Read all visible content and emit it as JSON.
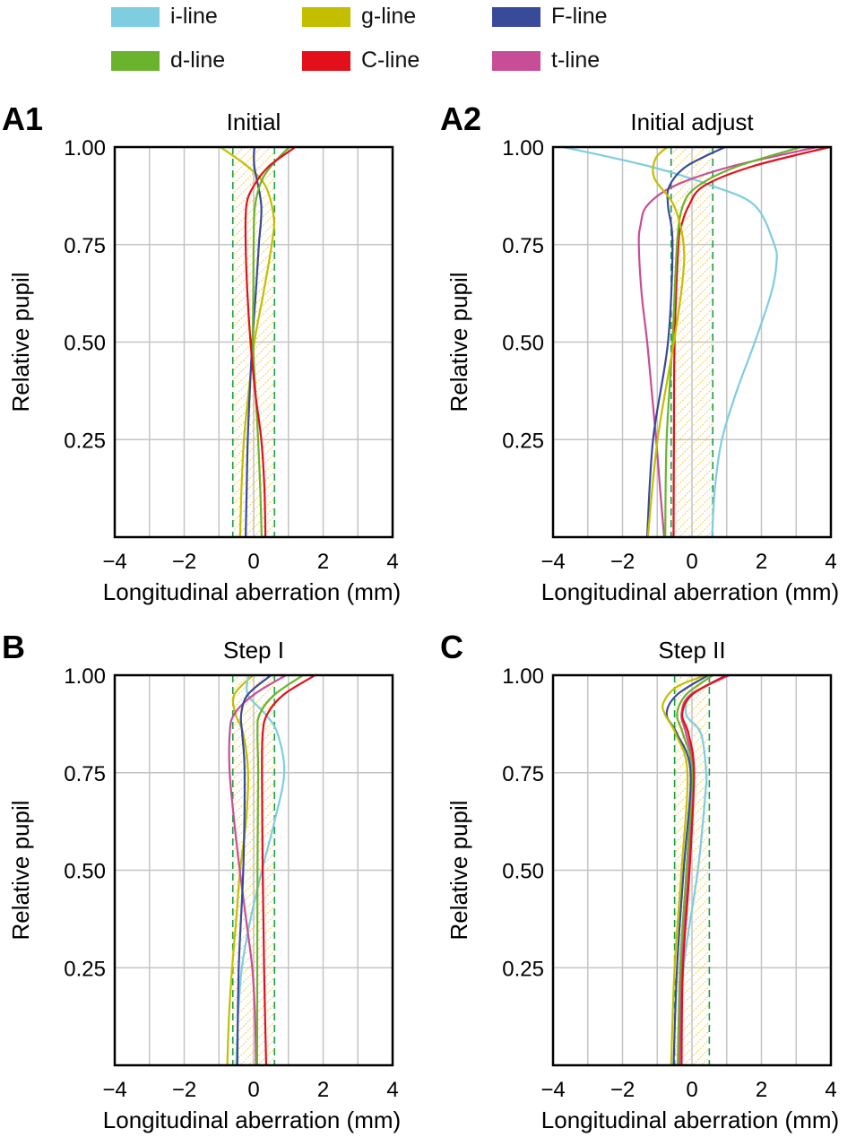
{
  "legend": [
    {
      "name": "i-line",
      "color": "#7ecde0"
    },
    {
      "name": "g-line",
      "color": "#c4be00"
    },
    {
      "name": "F-line",
      "color": "#3a4a9a"
    },
    {
      "name": "d-line",
      "color": "#6ab42d"
    },
    {
      "name": "C-line",
      "color": "#e3101b"
    },
    {
      "name": "t-line",
      "color": "#c84d97"
    }
  ],
  "chart_data": [
    {
      "panel": "A1",
      "title": "Initial",
      "type": "line",
      "xlabel": "Longitudinal aberration (mm)",
      "ylabel": "Relative pupil",
      "xlim": [
        -4,
        4
      ],
      "ylim": [
        0,
        1
      ],
      "xticks": [
        "−4",
        "−2",
        "0",
        "2",
        "4"
      ],
      "yticks": [
        "0.25",
        "0.50",
        "0.75",
        "1.00"
      ],
      "grid": true,
      "depth_of_focus": [
        -0.6,
        0.6
      ],
      "series": [
        {
          "name": "g-line",
          "points": [
            [
              -0.39,
              0
            ],
            [
              -0.35,
              0.125
            ],
            [
              -0.28,
              0.25
            ],
            [
              -0.14,
              0.375
            ],
            [
              0.02,
              0.5
            ],
            [
              0.28,
              0.625
            ],
            [
              0.52,
              0.75
            ],
            [
              0.58,
              0.82
            ],
            [
              0.34,
              0.9
            ],
            [
              -0.17,
              0.95
            ],
            [
              -0.96,
              1
            ]
          ]
        },
        {
          "name": "F-line",
          "points": [
            [
              -0.23,
              0
            ],
            [
              -0.2,
              0.125
            ],
            [
              -0.17,
              0.25
            ],
            [
              -0.11,
              0.375
            ],
            [
              -0.04,
              0.5
            ],
            [
              0.06,
              0.625
            ],
            [
              0.15,
              0.75
            ],
            [
              0.22,
              0.85
            ],
            [
              0.02,
              0.95
            ],
            [
              0.02,
              1
            ]
          ]
        },
        {
          "name": "d-line",
          "points": [
            [
              0.23,
              0
            ],
            [
              0.19,
              0.125
            ],
            [
              0.13,
              0.25
            ],
            [
              0.05,
              0.375
            ],
            [
              -0.02,
              0.5
            ],
            [
              -0.01,
              0.625
            ],
            [
              0,
              0.75
            ],
            [
              0.04,
              0.85
            ],
            [
              0.26,
              0.92
            ],
            [
              0.69,
              0.97
            ],
            [
              1.03,
              1
            ]
          ]
        },
        {
          "name": "C-line",
          "points": [
            [
              0.34,
              0
            ],
            [
              0.31,
              0.125
            ],
            [
              0.22,
              0.25
            ],
            [
              0.04,
              0.375
            ],
            [
              -0.09,
              0.5
            ],
            [
              -0.18,
              0.625
            ],
            [
              -0.23,
              0.75
            ],
            [
              -0.21,
              0.85
            ],
            [
              0,
              0.9
            ],
            [
              0.43,
              0.95
            ],
            [
              1.2,
              1
            ]
          ]
        }
      ]
    },
    {
      "panel": "A2",
      "title": "Initial adjust",
      "type": "line",
      "xlabel": "Longitudinal aberration (mm)",
      "ylabel": "Relative pupil",
      "xlim": [
        -4,
        4
      ],
      "ylim": [
        0,
        1
      ],
      "xticks": [
        "−4",
        "−2",
        "0",
        "2",
        "4"
      ],
      "yticks": [
        "0.25",
        "0.50",
        "0.75",
        "1.00"
      ],
      "grid": true,
      "depth_of_focus": [
        -0.6,
        0.6
      ],
      "series": [
        {
          "name": "i-line",
          "points": [
            [
              0.58,
              0
            ],
            [
              0.66,
              0.125
            ],
            [
              0.86,
              0.25
            ],
            [
              1.29,
              0.375
            ],
            [
              1.81,
              0.5
            ],
            [
              2.28,
              0.625
            ],
            [
              2.43,
              0.7
            ],
            [
              2.37,
              0.75
            ],
            [
              1.81,
              0.85
            ],
            [
              0.6,
              0.9
            ],
            [
              -1.2,
              0.95
            ],
            [
              -3.7,
              1
            ]
          ]
        },
        {
          "name": "t-line",
          "points": [
            [
              -0.8,
              0
            ],
            [
              -0.92,
              0.125
            ],
            [
              -1.03,
              0.25
            ],
            [
              -1.16,
              0.375
            ],
            [
              -1.29,
              0.5
            ],
            [
              -1.45,
              0.625
            ],
            [
              -1.53,
              0.75
            ],
            [
              -1.48,
              0.8
            ],
            [
              -1.29,
              0.85
            ],
            [
              -0.52,
              0.9
            ],
            [
              1.12,
              0.95
            ],
            [
              3.61,
              1
            ]
          ]
        },
        {
          "name": "C-line",
          "points": [
            [
              -0.53,
              0
            ],
            [
              -0.52,
              0.25
            ],
            [
              -0.5,
              0.5
            ],
            [
              -0.39,
              0.75
            ],
            [
              -0.3,
              0.8
            ],
            [
              -0.09,
              0.85
            ],
            [
              0.34,
              0.9
            ],
            [
              1.72,
              0.95
            ],
            [
              3.96,
              1
            ]
          ]
        },
        {
          "name": "d-line",
          "points": [
            [
              -0.77,
              0
            ],
            [
              -0.73,
              0.25
            ],
            [
              -0.56,
              0.5
            ],
            [
              -0.43,
              0.75
            ],
            [
              -0.26,
              0.85
            ],
            [
              0.17,
              0.9
            ],
            [
              1.29,
              0.95
            ],
            [
              3.14,
              1
            ]
          ]
        },
        {
          "name": "F-line",
          "points": [
            [
              -1.29,
              0
            ],
            [
              -1.12,
              0.25
            ],
            [
              -0.69,
              0.5
            ],
            [
              -0.56,
              0.75
            ],
            [
              -0.69,
              0.85
            ],
            [
              -0.65,
              0.9
            ],
            [
              -0.17,
              0.95
            ],
            [
              0.95,
              1
            ]
          ]
        },
        {
          "name": "g-line",
          "points": [
            [
              -1.27,
              0
            ],
            [
              -0.99,
              0.25
            ],
            [
              -0.52,
              0.5
            ],
            [
              -0.28,
              0.65
            ],
            [
              -0.24,
              0.75
            ],
            [
              -0.52,
              0.85
            ],
            [
              -1.08,
              0.92
            ],
            [
              -1.05,
              0.97
            ],
            [
              -0.71,
              1
            ]
          ]
        }
      ]
    },
    {
      "panel": "B",
      "title": "Step I",
      "type": "line",
      "xlabel": "Longitudinal aberration (mm)",
      "ylabel": "Relative pupil",
      "xlim": [
        -4,
        4
      ],
      "ylim": [
        0,
        1
      ],
      "xticks": [
        "−4",
        "−2",
        "0",
        "2",
        "4"
      ],
      "yticks": [
        "0.25",
        "0.50",
        "0.75",
        "1.00"
      ],
      "grid": true,
      "depth_of_focus": [
        -0.6,
        0.6
      ],
      "series": [
        {
          "name": "g-line",
          "points": [
            [
              -0.76,
              0
            ],
            [
              -0.71,
              0.125
            ],
            [
              -0.62,
              0.25
            ],
            [
              -0.5,
              0.375
            ],
            [
              -0.39,
              0.5
            ],
            [
              -0.22,
              0.625
            ],
            [
              -0.16,
              0.75
            ],
            [
              -0.3,
              0.85
            ],
            [
              -0.52,
              0.9
            ],
            [
              -0.56,
              0.95
            ],
            [
              -0.02,
              1
            ]
          ]
        },
        {
          "name": "i-line",
          "points": [
            [
              -0.5,
              0
            ],
            [
              -0.45,
              0.125
            ],
            [
              -0.34,
              0.25
            ],
            [
              -0.09,
              0.375
            ],
            [
              0.24,
              0.5
            ],
            [
              0.6,
              0.625
            ],
            [
              0.88,
              0.75
            ],
            [
              0.69,
              0.85
            ],
            [
              0.34,
              0.9
            ],
            [
              -0.17,
              0.95
            ],
            [
              -0.15,
              1
            ]
          ]
        },
        {
          "name": "t-line",
          "points": [
            [
              0.07,
              0
            ],
            [
              0.04,
              0.125
            ],
            [
              -0.04,
              0.25
            ],
            [
              -0.22,
              0.375
            ],
            [
              -0.4,
              0.5
            ],
            [
              -0.56,
              0.625
            ],
            [
              -0.69,
              0.75
            ],
            [
              -0.69,
              0.85
            ],
            [
              -0.56,
              0.9
            ],
            [
              0,
              0.95
            ],
            [
              0.93,
              1
            ]
          ]
        },
        {
          "name": "F-line",
          "points": [
            [
              -0.47,
              0
            ],
            [
              -0.43,
              0.25
            ],
            [
              -0.3,
              0.5
            ],
            [
              -0.26,
              0.75
            ],
            [
              -0.33,
              0.85
            ],
            [
              -0.36,
              0.9
            ],
            [
              -0.17,
              0.95
            ],
            [
              0.5,
              1
            ]
          ]
        },
        {
          "name": "d-line",
          "points": [
            [
              0.1,
              0
            ],
            [
              0.11,
              0.5
            ],
            [
              0.13,
              0.75
            ],
            [
              0.11,
              0.85
            ],
            [
              0.17,
              0.9
            ],
            [
              0.6,
              0.95
            ],
            [
              1.42,
              1
            ]
          ]
        },
        {
          "name": "C-line",
          "points": [
            [
              0.36,
              0
            ],
            [
              0.3,
              0.25
            ],
            [
              0.26,
              0.5
            ],
            [
              0.24,
              0.75
            ],
            [
              0.26,
              0.85
            ],
            [
              0.39,
              0.9
            ],
            [
              0.86,
              0.95
            ],
            [
              1.77,
              1
            ]
          ]
        }
      ]
    },
    {
      "panel": "C",
      "title": "Step II",
      "type": "line",
      "xlabel": "Longitudinal aberration (mm)",
      "ylabel": "Relative pupil",
      "xlim": [
        -4,
        4
      ],
      "ylim": [
        0,
        1
      ],
      "xticks": [
        "−4",
        "−2",
        "0",
        "2",
        "4"
      ],
      "yticks": [
        "0.25",
        "0.50",
        "0.75",
        "1.00"
      ],
      "grid": true,
      "depth_of_focus": [
        -0.5,
        0.5
      ],
      "series": [
        {
          "name": "i-line",
          "points": [
            [
              -0.39,
              0
            ],
            [
              -0.24,
              0.25
            ],
            [
              0.17,
              0.5
            ],
            [
              0.39,
              0.7
            ],
            [
              0.41,
              0.75
            ],
            [
              0.26,
              0.85
            ],
            [
              -0.17,
              0.9
            ],
            [
              0,
              0.95
            ],
            [
              0.99,
              1
            ]
          ]
        },
        {
          "name": "t-line",
          "points": [
            [
              -0.36,
              0
            ],
            [
              -0.3,
              0.25
            ],
            [
              -0.1,
              0.5
            ],
            [
              0.03,
              0.75
            ],
            [
              -0.17,
              0.85
            ],
            [
              -0.3,
              0.9
            ],
            [
              -0.04,
              0.95
            ],
            [
              1.08,
              1
            ]
          ]
        },
        {
          "name": "C-line",
          "points": [
            [
              -0.3,
              0
            ],
            [
              -0.26,
              0.25
            ],
            [
              -0.07,
              0.5
            ],
            [
              0.06,
              0.75
            ],
            [
              -0.1,
              0.85
            ],
            [
              -0.28,
              0.9
            ],
            [
              0,
              0.95
            ],
            [
              0.99,
              1
            ]
          ]
        },
        {
          "name": "d-line",
          "points": [
            [
              -0.41,
              0
            ],
            [
              -0.34,
              0.25
            ],
            [
              -0.16,
              0.5
            ],
            [
              0,
              0.75
            ],
            [
              -0.26,
              0.85
            ],
            [
              -0.43,
              0.9
            ],
            [
              -0.17,
              0.95
            ],
            [
              0.6,
              1
            ]
          ]
        },
        {
          "name": "F-line",
          "points": [
            [
              -0.53,
              0
            ],
            [
              -0.43,
              0.25
            ],
            [
              -0.24,
              0.5
            ],
            [
              -0.04,
              0.75
            ],
            [
              -0.43,
              0.85
            ],
            [
              -0.73,
              0.9
            ],
            [
              -0.43,
              0.95
            ],
            [
              0.47,
              1
            ]
          ]
        },
        {
          "name": "g-line",
          "points": [
            [
              -0.6,
              0
            ],
            [
              -0.5,
              0.25
            ],
            [
              -0.3,
              0.5
            ],
            [
              -0.13,
              0.75
            ],
            [
              -0.47,
              0.85
            ],
            [
              -0.78,
              0.9
            ],
            [
              -0.82,
              0.93
            ],
            [
              -0.44,
              0.97
            ],
            [
              0.39,
              1
            ]
          ]
        }
      ]
    }
  ]
}
